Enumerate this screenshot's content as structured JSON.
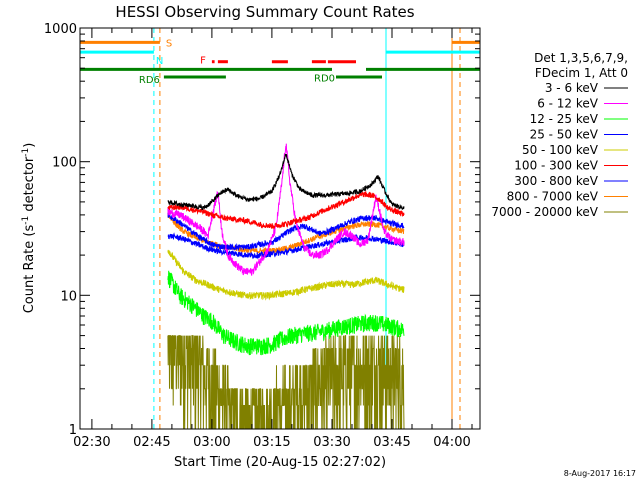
{
  "chart_data": {
    "type": "line",
    "title": "HESSI Observing Summary Count Rates",
    "xlabel": "Start Time (20-Aug-15 02:27:02)",
    "ylabel_prefix": "Count Rate (s",
    "ylabel_sup1": "-1",
    "ylabel_mid": " detector",
    "ylabel_sup2": "-1",
    "ylabel_suffix": ")",
    "y_scale": "log",
    "ylim": [
      1,
      1000
    ],
    "xlim": [
      "02:27:02",
      "04:07:00"
    ],
    "x_ticks": [
      "02:30",
      "02:45",
      "03:00",
      "03:15",
      "03:30",
      "03:45",
      "04:00"
    ],
    "y_ticks": [
      {
        "value": 1,
        "label": "1"
      },
      {
        "value": 10,
        "label": "10"
      },
      {
        "value": 100,
        "label": "100"
      },
      {
        "value": 1000,
        "label": "1000"
      }
    ],
    "footer_stamp": "8-Aug-2017 16:17",
    "legend": {
      "position": "right",
      "header_line1": "Det 1,3,5,6,7,9,",
      "header_line2": "FDecim 1, Att 0"
    },
    "flag_labels": {
      "S": "S",
      "N": "N",
      "F": "F",
      "RD0": "RD0",
      "RD6": "RD6"
    },
    "flags": {
      "S": {
        "color": "#ff8000",
        "y": 780,
        "segments": [
          [
            "02:27:02",
            "02:47:00"
          ],
          [
            "04:00:00",
            "04:07:00"
          ]
        ]
      },
      "N": {
        "color": "#00ffff",
        "y": 660,
        "segments": [
          [
            "02:27:02",
            "02:45:30"
          ],
          [
            "03:43:30",
            "04:07:00"
          ]
        ]
      },
      "F": {
        "color": "#ff0000",
        "y": 560,
        "segments": [
          [
            "03:00:00",
            "03:00:40"
          ],
          [
            "03:01:30",
            "03:04:00"
          ],
          [
            "03:15:00",
            "03:19:00"
          ],
          [
            "03:25:00",
            "03:28:30"
          ],
          [
            "03:29:00",
            "03:36:00"
          ]
        ]
      },
      "RD0": {
        "color": "#008000",
        "y": 490,
        "segments": [
          [
            "02:27:02",
            "03:30:00"
          ],
          [
            "03:38:30",
            "04:07:00"
          ]
        ]
      },
      "RD6": {
        "color": "#008000",
        "y": 430,
        "segments": [
          [
            "02:48:00",
            "03:03:30"
          ],
          [
            "03:31:00",
            "03:42:30"
          ]
        ]
      }
    },
    "vertical_lines": [
      {
        "time": "02:27:02",
        "color": "#00ffff",
        "style": "solid"
      },
      {
        "time": "02:45:30",
        "color": "#00ffff",
        "style": "dashed"
      },
      {
        "time": "02:47:00",
        "color": "#ff8000",
        "style": "dashed"
      },
      {
        "time": "03:43:30",
        "color": "#00ffff",
        "style": "solid"
      },
      {
        "time": "04:00:00",
        "color": "#ff8000",
        "style": "solid"
      },
      {
        "time": "04:02:00",
        "color": "#ff8000",
        "style": "dashed"
      }
    ],
    "series": [
      {
        "name": "3 - 6 keV",
        "color": "#000000",
        "noise": 0.04,
        "points": [
          [
            "02:49:00",
            50
          ],
          [
            "02:52:00",
            48
          ],
          [
            "02:55:00",
            47
          ],
          [
            "02:58:00",
            45
          ],
          [
            "03:00:00",
            50
          ],
          [
            "03:02:00",
            58
          ],
          [
            "03:04:00",
            62
          ],
          [
            "03:06:00",
            56
          ],
          [
            "03:09:00",
            52
          ],
          [
            "03:12:00",
            53
          ],
          [
            "03:15:00",
            60
          ],
          [
            "03:17:00",
            80
          ],
          [
            "03:18:30",
            115
          ],
          [
            "03:20:00",
            80
          ],
          [
            "03:22:00",
            62
          ],
          [
            "03:25:00",
            56
          ],
          [
            "03:28:00",
            56
          ],
          [
            "03:31:00",
            57
          ],
          [
            "03:34:00",
            58
          ],
          [
            "03:37:00",
            60
          ],
          [
            "03:40:00",
            68
          ],
          [
            "03:41:30",
            78
          ],
          [
            "03:43:00",
            62
          ],
          [
            "03:45:00",
            48
          ],
          [
            "03:48:00",
            45
          ]
        ]
      },
      {
        "name": "6 - 12 keV",
        "color": "#ff00ff",
        "noise": 0.07,
        "points": [
          [
            "02:49:00",
            42
          ],
          [
            "02:52:00",
            40
          ],
          [
            "02:55:00",
            35
          ],
          [
            "02:57:00",
            32
          ],
          [
            "02:59:00",
            28
          ],
          [
            "03:00:30",
            45
          ],
          [
            "03:01:30",
            60
          ],
          [
            "03:02:30",
            30
          ],
          [
            "03:04:00",
            20
          ],
          [
            "03:06:00",
            17
          ],
          [
            "03:08:00",
            15
          ],
          [
            "03:10:00",
            15
          ],
          [
            "03:12:00",
            18
          ],
          [
            "03:14:00",
            22
          ],
          [
            "03:16:00",
            32
          ],
          [
            "03:17:30",
            70
          ],
          [
            "03:18:30",
            140
          ],
          [
            "03:19:30",
            70
          ],
          [
            "03:21:00",
            35
          ],
          [
            "03:23:00",
            23
          ],
          [
            "03:25:00",
            20
          ],
          [
            "03:27:00",
            20
          ],
          [
            "03:29:00",
            22
          ],
          [
            "03:31:00",
            26
          ],
          [
            "03:33:00",
            30
          ],
          [
            "03:35:00",
            28
          ],
          [
            "03:37:00",
            24
          ],
          [
            "03:39:00",
            26
          ],
          [
            "03:41:00",
            55
          ],
          [
            "03:42:00",
            42
          ],
          [
            "03:43:00",
            30
          ],
          [
            "03:45:00",
            26
          ],
          [
            "03:48:00",
            25
          ]
        ]
      },
      {
        "name": "12 - 25 keV",
        "color": "#00ff00",
        "noise": 0.15,
        "points": [
          [
            "02:49:00",
            14
          ],
          [
            "02:52:00",
            10
          ],
          [
            "02:55:00",
            8.5
          ],
          [
            "02:58:00",
            7
          ],
          [
            "03:00:00",
            6.5
          ],
          [
            "03:03:00",
            5
          ],
          [
            "03:06:00",
            4.5
          ],
          [
            "03:09:00",
            4.2
          ],
          [
            "03:12:00",
            4.2
          ],
          [
            "03:15:00",
            4.3
          ],
          [
            "03:18:00",
            4.8
          ],
          [
            "03:20:00",
            5
          ],
          [
            "03:23:00",
            5.2
          ],
          [
            "03:26:00",
            5.3
          ],
          [
            "03:29:00",
            5.5
          ],
          [
            "03:32:00",
            5.8
          ],
          [
            "03:35:00",
            6
          ],
          [
            "03:38:00",
            6.2
          ],
          [
            "03:41:00",
            6.3
          ],
          [
            "03:44:00",
            6
          ],
          [
            "03:48:00",
            5.5
          ]
        ]
      },
      {
        "name": "25 - 50 keV",
        "color": "#0000ff",
        "noise": 0.05,
        "points": [
          [
            "02:49:00",
            40
          ],
          [
            "02:52:00",
            35
          ],
          [
            "02:55:00",
            30
          ],
          [
            "02:58:00",
            26
          ],
          [
            "03:00:00",
            24
          ],
          [
            "03:03:00",
            23
          ],
          [
            "03:06:00",
            23
          ],
          [
            "03:09:00",
            23
          ],
          [
            "03:12:00",
            24
          ],
          [
            "03:15:00",
            25
          ],
          [
            "03:17:00",
            27
          ],
          [
            "03:19:00",
            30
          ],
          [
            "03:21:00",
            32
          ],
          [
            "03:23:00",
            33
          ],
          [
            "03:25:00",
            31
          ],
          [
            "03:27:00",
            29
          ],
          [
            "03:29:00",
            30
          ],
          [
            "03:32:00",
            33
          ],
          [
            "03:35:00",
            36
          ],
          [
            "03:38:00",
            38
          ],
          [
            "03:41:00",
            38
          ],
          [
            "03:44:00",
            35
          ],
          [
            "03:48:00",
            33
          ]
        ]
      },
      {
        "name": "50 - 100 keV",
        "color": "#cccc00",
        "noise": 0.06,
        "points": [
          [
            "02:49:00",
            22
          ],
          [
            "02:51:00",
            18
          ],
          [
            "02:53:00",
            15
          ],
          [
            "02:56:00",
            13
          ],
          [
            "02:59:00",
            12
          ],
          [
            "03:02:00",
            11
          ],
          [
            "03:05:00",
            10.5
          ],
          [
            "03:08:00",
            10
          ],
          [
            "03:11:00",
            10
          ],
          [
            "03:14:00",
            10
          ],
          [
            "03:17:00",
            10.2
          ],
          [
            "03:20:00",
            10.5
          ],
          [
            "03:23:00",
            11
          ],
          [
            "03:26:00",
            11.5
          ],
          [
            "03:29:00",
            12
          ],
          [
            "03:32:00",
            12.2
          ],
          [
            "03:35:00",
            12
          ],
          [
            "03:38:00",
            12.5
          ],
          [
            "03:41:00",
            13
          ],
          [
            "03:44:00",
            12
          ],
          [
            "03:48:00",
            11
          ]
        ]
      },
      {
        "name": "100 - 300 keV",
        "color": "#ff0000",
        "noise": 0.05,
        "points": [
          [
            "02:49:00",
            45
          ],
          [
            "02:52:00",
            46
          ],
          [
            "02:55:00",
            44
          ],
          [
            "02:58:00",
            42
          ],
          [
            "03:00:00",
            40
          ],
          [
            "03:03:00",
            38
          ],
          [
            "03:06:00",
            37
          ],
          [
            "03:09:00",
            36
          ],
          [
            "03:12:00",
            34
          ],
          [
            "03:15:00",
            33
          ],
          [
            "03:18:00",
            34
          ],
          [
            "03:21:00",
            36
          ],
          [
            "03:24:00",
            38
          ],
          [
            "03:27:00",
            42
          ],
          [
            "03:30:00",
            46
          ],
          [
            "03:33:00",
            50
          ],
          [
            "03:36:00",
            55
          ],
          [
            "03:38:00",
            57
          ],
          [
            "03:40:00",
            56
          ],
          [
            "03:42:00",
            52
          ],
          [
            "03:44:00",
            45
          ],
          [
            "03:48:00",
            40
          ]
        ]
      },
      {
        "name": "300 - 800 keV",
        "color": "#0000ff",
        "noise": 0.05,
        "points": [
          [
            "02:49:00",
            28
          ],
          [
            "02:52:00",
            27
          ],
          [
            "02:55:00",
            25
          ],
          [
            "02:58:00",
            23
          ],
          [
            "03:00:00",
            22
          ],
          [
            "03:03:00",
            21
          ],
          [
            "03:06:00",
            20.5
          ],
          [
            "03:09:00",
            20
          ],
          [
            "03:12:00",
            20
          ],
          [
            "03:15:00",
            20.5
          ],
          [
            "03:18:00",
            21
          ],
          [
            "03:21:00",
            22
          ],
          [
            "03:24:00",
            23
          ],
          [
            "03:27:00",
            24
          ],
          [
            "03:30:00",
            25
          ],
          [
            "03:33:00",
            26
          ],
          [
            "03:36:00",
            27
          ],
          [
            "03:39:00",
            27
          ],
          [
            "03:42:00",
            26
          ],
          [
            "03:45:00",
            25
          ],
          [
            "03:48:00",
            24
          ]
        ]
      },
      {
        "name": "800 - 7000 keV",
        "color": "#ff8000",
        "noise": 0.05,
        "points": [
          [
            "02:49:00",
            40
          ],
          [
            "02:51:00",
            34
          ],
          [
            "02:53:00",
            30
          ],
          [
            "02:56:00",
            27
          ],
          [
            "02:59:00",
            25
          ],
          [
            "03:02:00",
            23.5
          ],
          [
            "03:05:00",
            22.5
          ],
          [
            "03:08:00",
            22
          ],
          [
            "03:11:00",
            21.5
          ],
          [
            "03:14:00",
            21.5
          ],
          [
            "03:17:00",
            22
          ],
          [
            "03:20:00",
            23
          ],
          [
            "03:23:00",
            25
          ],
          [
            "03:26:00",
            27
          ],
          [
            "03:29:00",
            29
          ],
          [
            "03:32:00",
            31
          ],
          [
            "03:35:00",
            33
          ],
          [
            "03:38:00",
            34
          ],
          [
            "03:41:00",
            34
          ],
          [
            "03:44:00",
            32
          ],
          [
            "03:48:00",
            30
          ]
        ]
      },
      {
        "name": "7000 - 20000 keV",
        "color": "#808000",
        "noise": 0.5,
        "points": [
          [
            "02:49:00",
            4.5
          ],
          [
            "02:52:00",
            4
          ],
          [
            "02:55:00",
            3.5
          ],
          [
            "02:57:00",
            3
          ],
          [
            "02:59:00",
            2.5
          ],
          [
            "03:01:00",
            2
          ],
          [
            "03:03:00",
            1.6
          ],
          [
            "03:05:00",
            1.3
          ],
          [
            "03:08:00",
            1.2
          ],
          [
            "03:11:00",
            1.2
          ],
          [
            "03:14:00",
            1.3
          ],
          [
            "03:17:00",
            1.5
          ],
          [
            "03:20:00",
            1.7
          ],
          [
            "03:23:00",
            2
          ],
          [
            "03:26:00",
            2.3
          ],
          [
            "03:29:00",
            2.6
          ],
          [
            "03:32:00",
            2.8
          ],
          [
            "03:35:00",
            2.9
          ],
          [
            "03:38:00",
            3
          ],
          [
            "03:41:00",
            3
          ],
          [
            "03:44:00",
            2.8
          ],
          [
            "03:48:00",
            2.7
          ]
        ]
      }
    ]
  }
}
